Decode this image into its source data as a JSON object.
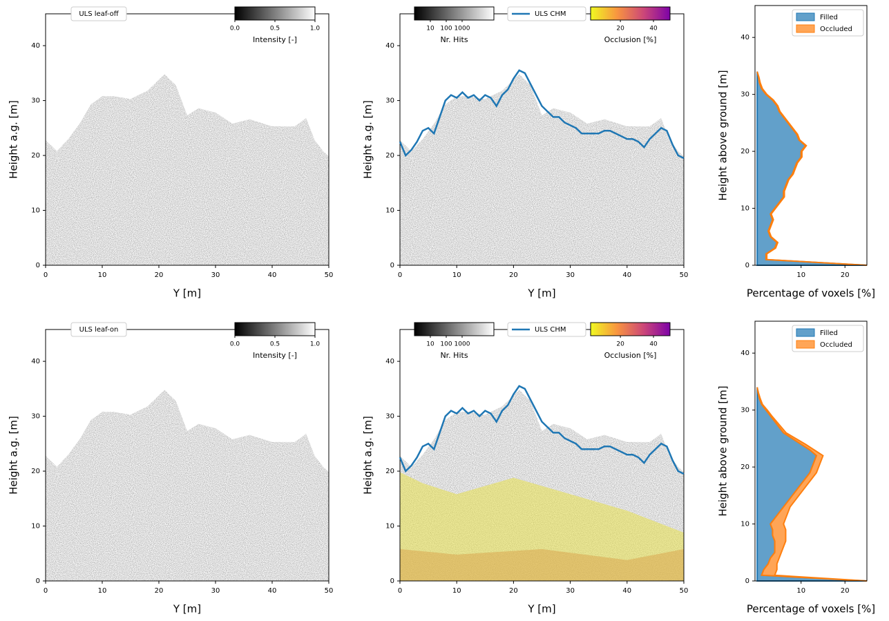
{
  "chart_data": [
    {
      "type": "point-cloud",
      "annotation": "ULS leaf-off",
      "xlabel": "Y [m]",
      "ylabel": "Height a.g. [m]",
      "xlim": [
        0,
        50
      ],
      "ylim": [
        0,
        45.8
      ],
      "xticks": [
        0,
        10,
        20,
        30,
        40,
        50
      ],
      "yticks": [
        0,
        10,
        20,
        30,
        40
      ],
      "colorbars": [
        {
          "label": "Intensity [-]",
          "lim": [
            0,
            1
          ],
          "ticks": [
            {
              "value": 0,
              "label": "0.0"
            },
            {
              "value": 0.5,
              "label": "0.5"
            },
            {
              "value": 1,
              "label": "1.0"
            }
          ],
          "colors": [
            "#000000",
            "#ffffff"
          ]
        }
      ]
    },
    {
      "type": "line",
      "xlabel": "Y [m]",
      "ylabel": "Height a.g. [m]",
      "xlim": [
        0,
        50
      ],
      "ylim": [
        0,
        45.8
      ],
      "xticks": [
        0,
        10,
        20,
        30,
        40,
        50
      ],
      "yticks": [
        0,
        10,
        20,
        30,
        40
      ],
      "x": [
        0,
        1,
        2,
        3,
        4,
        5,
        6,
        7,
        8,
        9,
        10,
        11,
        12,
        13,
        14,
        15,
        16,
        17,
        18,
        19,
        20,
        21,
        22,
        23,
        24,
        25,
        26,
        27,
        28,
        29,
        30,
        31,
        32,
        33,
        34,
        35,
        36,
        37,
        38,
        39,
        40,
        41,
        42,
        43,
        44,
        45,
        46,
        47,
        48,
        49,
        50
      ],
      "series": [
        {
          "name": "ULS CHM",
          "color": "#1f77b4",
          "values": [
            22.5,
            20,
            21,
            22.5,
            24.5,
            25,
            24,
            27,
            30,
            31,
            30.5,
            31.5,
            30.5,
            31,
            30,
            31,
            30.5,
            29,
            31,
            32,
            34,
            35.5,
            35,
            33,
            31,
            29,
            28,
            27,
            27,
            26,
            25.5,
            25,
            24,
            24,
            24,
            24,
            24.5,
            24.5,
            24,
            23.5,
            23,
            23,
            22.5,
            21.5,
            23,
            24,
            25,
            24.5,
            22,
            20,
            19.5
          ]
        }
      ],
      "colorbars": [
        {
          "label": "Nr. Hits",
          "log": true,
          "lim": [
            1,
            100000
          ],
          "ticks": [
            10,
            100,
            1000
          ],
          "colors": [
            "#000000",
            "#ffffff"
          ]
        },
        {
          "label": "Occlusion [%]",
          "lim": [
            2,
            50
          ],
          "ticks": [
            20,
            40
          ],
          "colors": [
            "#f0f921",
            "#f89540",
            "#cc4778",
            "#7e03a8"
          ]
        }
      ]
    },
    {
      "type": "area",
      "stacked": true,
      "xlabel": "Percentage of voxels [%]",
      "ylabel": "Height above ground [m]",
      "xlim": [
        -0.5,
        25
      ],
      "ylim": [
        0,
        45.6
      ],
      "xticks": [
        10,
        20
      ],
      "yticks": [
        0,
        10,
        20,
        30,
        40
      ],
      "legend": "upper right",
      "y": [
        0,
        1,
        2,
        3,
        4,
        5,
        6,
        7,
        8,
        9,
        10,
        11,
        12,
        13,
        14,
        15,
        16,
        17,
        18,
        19,
        20,
        21,
        22,
        23,
        24,
        25,
        26,
        27,
        28,
        29,
        30,
        31,
        32,
        33,
        34
      ],
      "series": [
        {
          "name": "Filled",
          "color": "#1f77b4",
          "values": [
            25,
            2,
            2,
            4,
            4.5,
            3,
            2.5,
            3,
            3.5,
            3,
            4,
            5,
            6,
            6,
            6.5,
            7,
            8,
            8.5,
            9,
            10,
            10,
            11,
            9.5,
            9,
            8,
            7,
            6,
            5,
            4.5,
            3.5,
            2,
            1,
            0.5,
            0.3,
            0
          ]
        },
        {
          "name": "Occluded",
          "color": "#ff7f0e",
          "values": [
            0,
            0.2,
            0.2,
            0.2,
            0.2,
            0.2,
            0.2,
            0.2,
            0.2,
            0.2,
            0.2,
            0.2,
            0.2,
            0.2,
            0.2,
            0.2,
            0.2,
            0.2,
            0.2,
            0.2,
            0.2,
            0.2,
            0.2,
            0.2,
            0.2,
            0.2,
            0.2,
            0.2,
            0.2,
            0.2,
            0.2,
            0.2,
            0.2,
            0.1,
            0
          ]
        }
      ]
    },
    {
      "type": "point-cloud",
      "annotation": "ULS leaf-on",
      "xlabel": "Y [m]",
      "ylabel": "Height a.g. [m]",
      "xlim": [
        0,
        50
      ],
      "ylim": [
        0,
        45.8
      ],
      "xticks": [
        0,
        10,
        20,
        30,
        40,
        50
      ],
      "yticks": [
        0,
        10,
        20,
        30,
        40
      ],
      "colorbars": [
        {
          "label": "Intensity [-]",
          "lim": [
            0,
            1
          ],
          "ticks": [
            {
              "value": 0,
              "label": "0.0"
            },
            {
              "value": 0.5,
              "label": "0.5"
            },
            {
              "value": 1,
              "label": "1.0"
            }
          ],
          "colors": [
            "#000000",
            "#ffffff"
          ]
        }
      ]
    },
    {
      "type": "line",
      "xlabel": "Y [m]",
      "ylabel": "Height a.g. [m]",
      "xlim": [
        0,
        50
      ],
      "ylim": [
        0,
        45.8
      ],
      "xticks": [
        0,
        10,
        20,
        30,
        40,
        50
      ],
      "yticks": [
        0,
        10,
        20,
        30,
        40
      ],
      "x": [
        0,
        1,
        2,
        3,
        4,
        5,
        6,
        7,
        8,
        9,
        10,
        11,
        12,
        13,
        14,
        15,
        16,
        17,
        18,
        19,
        20,
        21,
        22,
        23,
        24,
        25,
        26,
        27,
        28,
        29,
        30,
        31,
        32,
        33,
        34,
        35,
        36,
        37,
        38,
        39,
        40,
        41,
        42,
        43,
        44,
        45,
        46,
        47,
        48,
        49,
        50
      ],
      "series": [
        {
          "name": "ULS CHM",
          "color": "#1f77b4",
          "values": [
            22.5,
            20,
            21,
            22.5,
            24.5,
            25,
            24,
            27,
            30,
            31,
            30.5,
            31.5,
            30.5,
            31,
            30,
            31,
            30.5,
            29,
            31,
            32,
            34,
            35.5,
            35,
            33,
            31,
            29,
            28,
            27,
            27,
            26,
            25.5,
            25,
            24,
            24,
            24,
            24,
            24.5,
            24.5,
            24,
            23.5,
            23,
            23,
            22.5,
            21.5,
            23,
            24,
            25,
            24.5,
            22,
            20,
            19.5
          ]
        }
      ],
      "colorbars": [
        {
          "label": "Nr. Hits",
          "log": true,
          "lim": [
            1,
            100000
          ],
          "ticks": [
            10,
            100,
            1000
          ],
          "colors": [
            "#000000",
            "#ffffff"
          ]
        },
        {
          "label": "Occlusion [%]",
          "lim": [
            2,
            50
          ],
          "ticks": [
            20,
            40
          ],
          "colors": [
            "#f0f921",
            "#f89540",
            "#cc4778",
            "#7e03a8"
          ]
        }
      ]
    },
    {
      "type": "area",
      "stacked": true,
      "xlabel": "Percentage of voxels [%]",
      "ylabel": "Height above ground [m]",
      "xlim": [
        -0.5,
        25
      ],
      "ylim": [
        0,
        45.6
      ],
      "xticks": [
        10,
        20
      ],
      "yticks": [
        0,
        10,
        20,
        30,
        40
      ],
      "legend": "upper right",
      "y": [
        0,
        1,
        2,
        3,
        4,
        5,
        6,
        7,
        8,
        9,
        10,
        11,
        12,
        13,
        14,
        15,
        16,
        17,
        18,
        19,
        20,
        21,
        22,
        23,
        24,
        25,
        26,
        27,
        28,
        29,
        30,
        31,
        32,
        33,
        34
      ],
      "series": [
        {
          "name": "Filled",
          "color": "#1f77b4",
          "values": [
            25,
            1,
            1.5,
            2.5,
            3,
            4,
            4,
            4,
            3.5,
            3.5,
            3,
            4,
            5,
            6,
            7,
            8,
            9,
            10,
            11,
            12,
            12.5,
            13,
            13.5,
            12,
            10,
            8,
            6,
            5,
            4,
            3,
            2,
            1,
            0.5,
            0.2,
            0
          ]
        },
        {
          "name": "Occluded",
          "color": "#ff7f0e",
          "values": [
            0,
            3,
            3,
            2,
            2,
            1.5,
            2,
            2.5,
            3,
            3,
            3,
            2.5,
            2,
            1.5,
            1.5,
            1.5,
            1.5,
            1.5,
            1.5,
            1.5,
            1.5,
            1.5,
            1.5,
            1,
            1,
            0.8,
            0.6,
            0.5,
            0.4,
            0.3,
            0.3,
            0.2,
            0.2,
            0.1,
            0
          ]
        }
      ]
    }
  ]
}
